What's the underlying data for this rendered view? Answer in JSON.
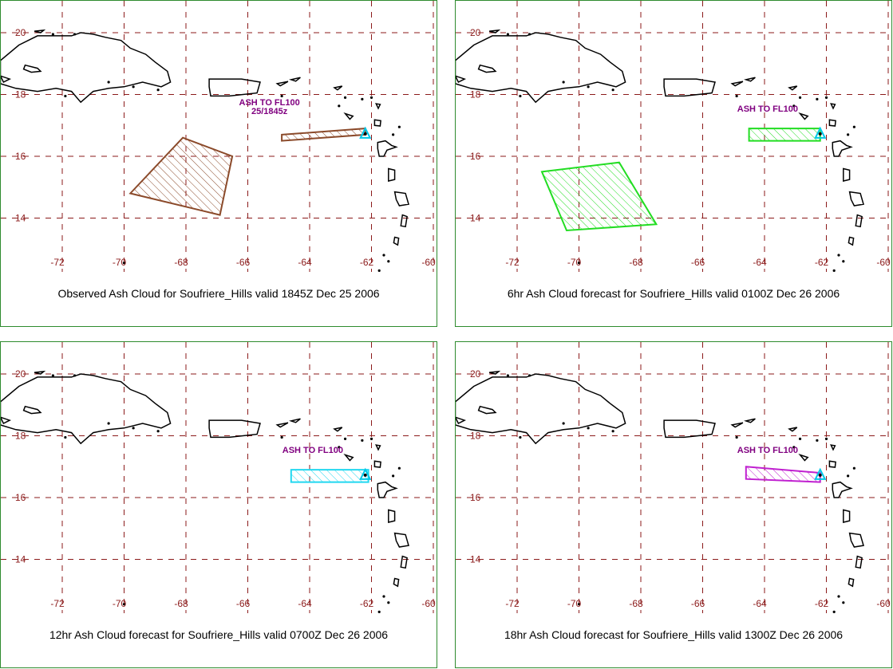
{
  "colors": {
    "grid": "#8b1a1a",
    "tick_labels": "#8b1a1a",
    "label": "#800080",
    "coast": "#000000",
    "vent": "#00c8e8",
    "panel_border": "#2e8b2e"
  },
  "map_extent": {
    "lon": [
      -74,
      -60
    ],
    "lat": [
      12.5,
      21
    ]
  },
  "lat_ticks": [
    "20",
    "18",
    "16",
    "14"
  ],
  "lon_ticks": [
    "-72",
    "-70",
    "-68",
    "-66",
    "-64",
    "-62",
    "-60"
  ],
  "volcano": {
    "name": "Soufriere_Hills",
    "lon": -62.2,
    "lat": 16.7
  },
  "panels": [
    {
      "caption": "Observed Ash Cloud for Soufriere_Hills valid 1845Z Dec 25 2006",
      "label": "ASH TO FL100",
      "sublabel": "25/1845z",
      "color": "#8b4a2a",
      "clouds": [
        [
          [
            -69.8,
            14.8
          ],
          [
            -68.1,
            16.6
          ],
          [
            -66.5,
            16.0
          ],
          [
            -66.9,
            14.1
          ]
        ],
        [
          [
            -64.9,
            16.7
          ],
          [
            -62.2,
            16.9
          ],
          [
            -62.2,
            16.7
          ],
          [
            -64.9,
            16.5
          ]
        ]
      ]
    },
    {
      "caption": "6hr Ash Cloud forecast for Soufriere_Hills valid 0100Z Dec 26 2006",
      "label": "ASH TO FL100",
      "sublabel": "",
      "color": "#22dd22",
      "clouds": [
        [
          [
            -71.2,
            15.5
          ],
          [
            -68.7,
            15.8
          ],
          [
            -67.5,
            13.8
          ],
          [
            -70.4,
            13.6
          ]
        ],
        [
          [
            -64.5,
            16.9
          ],
          [
            -62.2,
            16.9
          ],
          [
            -62.2,
            16.5
          ],
          [
            -64.5,
            16.5
          ]
        ]
      ]
    },
    {
      "caption": "12hr Ash Cloud forecast for Soufriere_Hills valid 0700Z Dec 26 2006",
      "label": "ASH TO FL100",
      "sublabel": "",
      "color": "#22d8f0",
      "clouds": [
        [
          [
            -64.6,
            16.9
          ],
          [
            -62.1,
            16.9
          ],
          [
            -62.1,
            16.5
          ],
          [
            -64.6,
            16.5
          ]
        ]
      ]
    },
    {
      "caption": "18hr Ash Cloud forecast for Soufriere_Hills valid 1300Z Dec 26 2006",
      "label": "ASH TO FL100",
      "sublabel": "",
      "color": "#c020d0",
      "clouds": [
        [
          [
            -64.6,
            17.0
          ],
          [
            -62.2,
            16.8
          ],
          [
            -62.2,
            16.5
          ],
          [
            -64.6,
            16.6
          ]
        ]
      ]
    }
  ]
}
